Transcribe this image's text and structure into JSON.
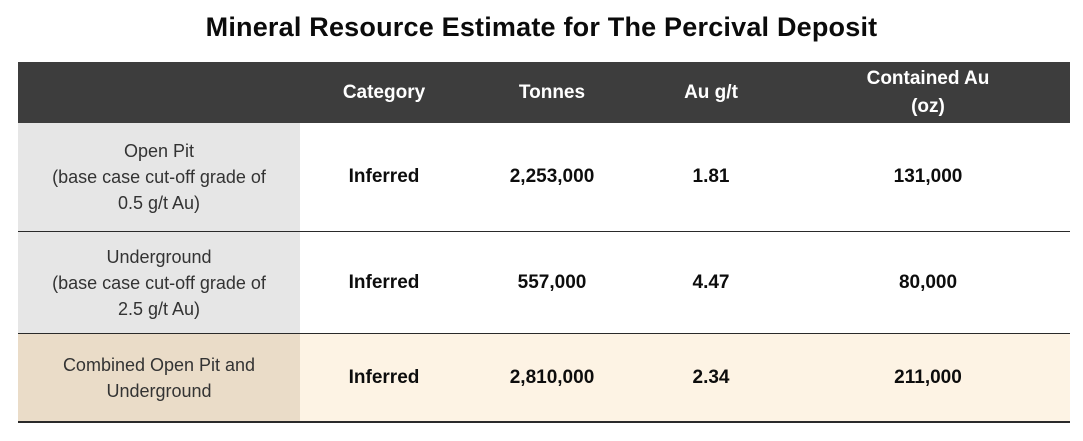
{
  "title": "Mineral Resource Estimate for The Percival Deposit",
  "header": {
    "col0": "",
    "category": "Category",
    "tonnes": "Tonnes",
    "grade": "Au g/t",
    "contained_line1": "Contained Au",
    "contained_line2": "(oz)"
  },
  "rows": [
    {
      "label_lines": [
        "Open Pit",
        "(base case cut-off grade of",
        "0.5 g/t Au)"
      ],
      "category": "Inferred",
      "tonnes": "2,253,000",
      "grade": "1.81",
      "contained": "131,000"
    },
    {
      "label_lines": [
        "Underground",
        "(base case cut-off grade of",
        "2.5 g/t Au)"
      ],
      "category": "Inferred",
      "tonnes": "557,000",
      "grade": "4.47",
      "contained": "80,000"
    },
    {
      "label_lines": [
        "Combined Open Pit and",
        "Underground"
      ],
      "category": "Inferred",
      "tonnes": "2,810,000",
      "grade": "2.34",
      "contained": "211,000"
    }
  ],
  "colors": {
    "header_bg": "#3d3d3d",
    "label_bg_gray": "#e6e6e6",
    "label_bg_combined": "#eadcc8",
    "combined_row_bg": "#fdf3e4"
  }
}
